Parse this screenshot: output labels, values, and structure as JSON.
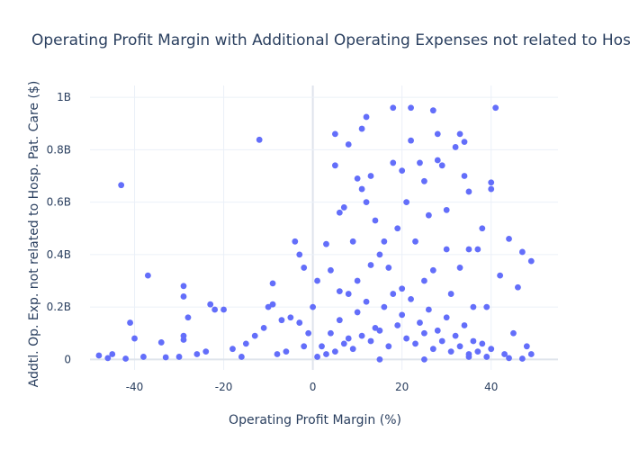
{
  "chart_data": {
    "type": "scatter",
    "title": "Operating Profit Margin with Additional Operating Expenses not related to Hospital P",
    "x_label": "Operating Profit Margin (%)",
    "y_label": "Addtl. Op. Exp. not related to Hosp. Pat. Care ($)",
    "color": "#636efa",
    "grid": true,
    "xlim": [
      -50,
      55
    ],
    "ylim": [
      -40000000.0,
      1045000000.0
    ],
    "xticks": [
      -40,
      -20,
      0,
      20,
      40
    ],
    "yticks": [
      0,
      {
        "value": 200000000.0,
        "label": "0.2B"
      },
      {
        "value": 400000000.0,
        "label": "0.4B"
      },
      {
        "value": 600000000.0,
        "label": "0.6B"
      },
      {
        "value": 800000000.0,
        "label": "0.8B"
      },
      {
        "value": 1000000000.0,
        "label": "1B"
      }
    ],
    "x": [
      -43,
      -12,
      -37,
      -41,
      -40,
      -29,
      -29,
      -28,
      -29,
      -29,
      -23,
      -22,
      -20,
      -34,
      -48,
      -45,
      -9,
      -9,
      -10,
      -4,
      -3,
      -2,
      1,
      3,
      5,
      5,
      8,
      6,
      7,
      11,
      12,
      13,
      10,
      11,
      12,
      14,
      18,
      22,
      27,
      18,
      20,
      21,
      22,
      24,
      25,
      26,
      28,
      28,
      29,
      30,
      32,
      33,
      34,
      34,
      35,
      38,
      40,
      40,
      41,
      44,
      47,
      49,
      42,
      46,
      16,
      19,
      23,
      30,
      35,
      37,
      9,
      15,
      17,
      27,
      33,
      4,
      6,
      8,
      10,
      13,
      20,
      25,
      31,
      36,
      39,
      45,
      48,
      49,
      -46,
      -42,
      -38,
      -33,
      -30,
      -26,
      -24,
      -18,
      -15,
      -13,
      -11,
      -7,
      -5,
      -3,
      -1,
      0,
      2,
      4,
      6,
      8,
      10,
      12,
      14,
      16,
      18,
      20,
      22,
      24,
      26,
      28,
      30,
      32,
      34,
      36,
      38,
      40,
      3,
      5,
      7,
      9,
      11,
      13,
      15,
      17,
      19,
      21,
      23,
      25,
      27,
      29,
      31,
      33,
      35,
      37,
      39,
      43,
      -16,
      -8,
      -6,
      -2,
      1,
      15,
      25,
      35,
      44,
      47
    ],
    "values": [
      665000000.0,
      838000000.0,
      320000000.0,
      140000000.0,
      80000000.0,
      280000000.0,
      240000000.0,
      160000000.0,
      90000000.0,
      75000000.0,
      210000000.0,
      190000000.0,
      190000000.0,
      65000000.0,
      15000000.0,
      20000000.0,
      290000000.0,
      210000000.0,
      200000000.0,
      450000000.0,
      400000000.0,
      350000000.0,
      300000000.0,
      440000000.0,
      860000000.0,
      740000000.0,
      820000000.0,
      560000000.0,
      580000000.0,
      880000000.0,
      925000000.0,
      700000000.0,
      690000000.0,
      650000000.0,
      600000000.0,
      530000000.0,
      960000000.0,
      960000000.0,
      950000000.0,
      750000000.0,
      720000000.0,
      600000000.0,
      835000000.0,
      750000000.0,
      680000000.0,
      550000000.0,
      860000000.0,
      760000000.0,
      740000000.0,
      570000000.0,
      810000000.0,
      860000000.0,
      830000000.0,
      700000000.0,
      640000000.0,
      500000000.0,
      675000000.0,
      650000000.0,
      960000000.0,
      460000000.0,
      410000000.0,
      375000000.0,
      320000000.0,
      275000000.0,
      450000000.0,
      500000000.0,
      450000000.0,
      420000000.0,
      420000000.0,
      420000000.0,
      450000000.0,
      400000000.0,
      350000000.0,
      340000000.0,
      350000000.0,
      340000000.0,
      260000000.0,
      250000000.0,
      300000000.0,
      360000000.0,
      270000000.0,
      300000000.0,
      250000000.0,
      200000000.0,
      200000000.0,
      100000000.0,
      50000000.0,
      20000000.0,
      5000000.0,
      3000000.0,
      10000000.0,
      8000000.0,
      10000000.0,
      20000000.0,
      30000000.0,
      40000000.0,
      60000000.0,
      90000000.0,
      120000000.0,
      150000000.0,
      160000000.0,
      140000000.0,
      100000000.0,
      200000000.0,
      50000000.0,
      100000000.0,
      150000000.0,
      80000000.0,
      180000000.0,
      220000000.0,
      120000000.0,
      200000000.0,
      250000000.0,
      170000000.0,
      230000000.0,
      140000000.0,
      190000000.0,
      110000000.0,
      160000000.0,
      90000000.0,
      130000000.0,
      70000000.0,
      60000000.0,
      40000000.0,
      20000000.0,
      30000000.0,
      60000000.0,
      40000000.0,
      90000000.0,
      70000000.0,
      110000000.0,
      50000000.0,
      130000000.0,
      80000000.0,
      60000000.0,
      100000000.0,
      40000000.0,
      70000000.0,
      30000000.0,
      50000000.0,
      20000000.0,
      30000000.0,
      10000000.0,
      20000000.0,
      10000000.0,
      20000000.0,
      30000000.0,
      50000000.0,
      10000000.0,
      0,
      0,
      10000000.0,
      5000000.0,
      3000000.0
    ]
  }
}
